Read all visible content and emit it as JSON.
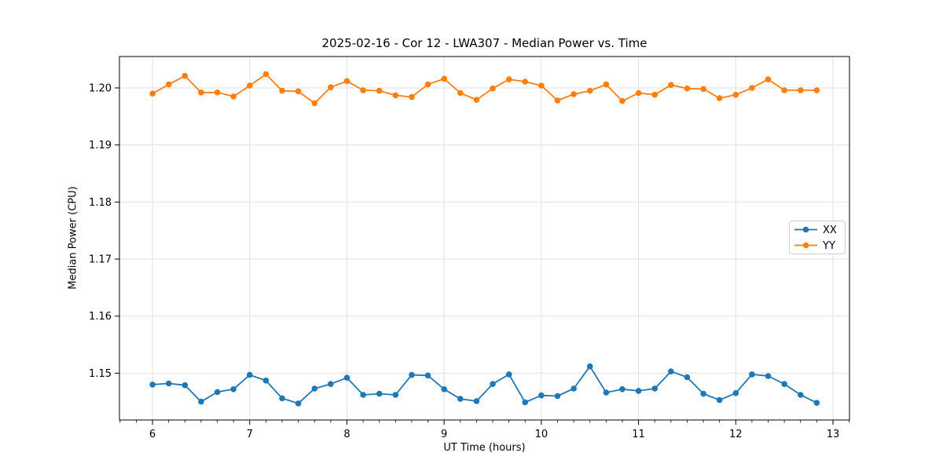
{
  "figure": {
    "title": "2025-02-16 - Cor 12 - LWA307 - Median Power vs. Time",
    "xlabel": "UT Time (hours)",
    "ylabel": "Median Power (CPU)"
  },
  "chart_data": {
    "type": "line",
    "title": "2025-02-16 - Cor 12 - LWA307 - Median Power vs. Time",
    "xlabel": "UT Time (hours)",
    "ylabel": "Median Power (CPU)",
    "xlim": [
      5.66,
      13.17
    ],
    "ylim": [
      1.1418,
      1.2055
    ],
    "x_major_ticks": [
      6,
      7,
      8,
      9,
      10,
      11,
      12,
      13
    ],
    "x_minor_tick_interval": 0.16667,
    "y_ticks": [
      1.15,
      1.16,
      1.17,
      1.18,
      1.19,
      1.2
    ],
    "grid": true,
    "legend_position": "center right",
    "legend_labels": [
      "XX",
      "YY"
    ],
    "colors": {
      "xx_series": "#1f77b4",
      "yy_series": "#ff7f0e",
      "grid": "#e0e0e0",
      "spine": "#000000",
      "text": "#000000",
      "legend_border": "#cccccc"
    },
    "x": [
      6.0,
      6.167,
      6.333,
      6.5,
      6.667,
      6.833,
      7.0,
      7.167,
      7.333,
      7.5,
      7.667,
      7.833,
      8.0,
      8.167,
      8.333,
      8.5,
      8.667,
      8.833,
      9.0,
      9.167,
      9.333,
      9.5,
      9.667,
      9.833,
      10.0,
      10.167,
      10.333,
      10.5,
      10.667,
      10.833,
      11.0,
      11.167,
      11.333,
      11.5,
      11.667,
      11.833,
      12.0,
      12.167,
      12.333,
      12.5,
      12.667,
      12.833
    ],
    "series": [
      {
        "name": "XX",
        "color": "#1f77b4",
        "values": [
          1.148,
          1.1482,
          1.1479,
          1.145,
          1.1467,
          1.1472,
          1.1497,
          1.1487,
          1.1456,
          1.1447,
          1.1473,
          1.1481,
          1.1492,
          1.1462,
          1.1464,
          1.1462,
          1.1497,
          1.1496,
          1.1472,
          1.1455,
          1.1451,
          1.1481,
          1.1498,
          1.1449,
          1.1461,
          1.146,
          1.1473,
          1.1512,
          1.1466,
          1.1472,
          1.1469,
          1.1473,
          1.1503,
          1.1493,
          1.1464,
          1.1453,
          1.1465,
          1.1498,
          1.1495,
          1.1481,
          1.1462,
          1.1448
        ]
      },
      {
        "name": "YY",
        "color": "#ff7f0e",
        "values": [
          1.199,
          1.2006,
          1.2021,
          1.1992,
          1.1992,
          1.1985,
          1.2004,
          1.2024,
          1.1995,
          1.1994,
          1.1973,
          1.2001,
          1.2012,
          1.1996,
          1.1995,
          1.1987,
          1.1984,
          1.2006,
          1.2016,
          1.1991,
          1.1979,
          1.1999,
          1.2015,
          1.2011,
          1.2004,
          1.1978,
          1.1989,
          1.1995,
          1.2006,
          1.1977,
          1.1991,
          1.1988,
          1.2005,
          1.1999,
          1.1998,
          1.1982,
          1.1988,
          1.2,
          1.2015,
          1.1996,
          1.1996,
          1.1996
        ]
      }
    ]
  }
}
